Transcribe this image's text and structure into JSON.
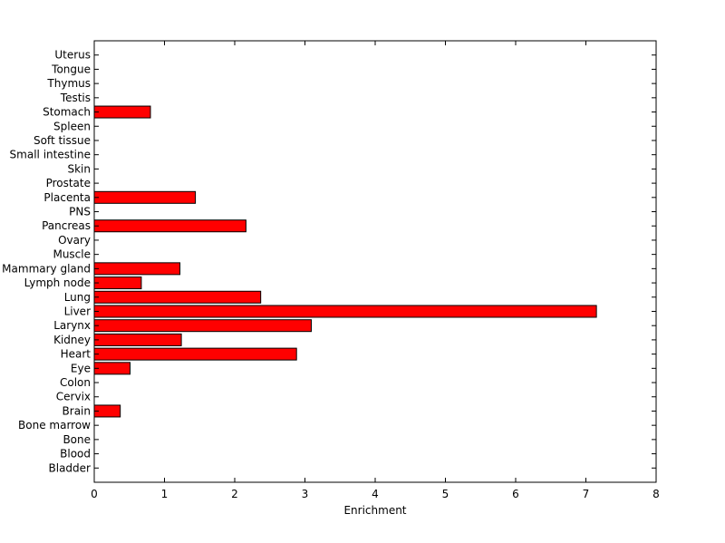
{
  "chart_data": {
    "type": "bar",
    "orientation": "horizontal",
    "categories": [
      "Bladder",
      "Blood",
      "Bone",
      "Bone marrow",
      "Brain",
      "Cervix",
      "Colon",
      "Eye",
      "Heart",
      "Kidney",
      "Larynx",
      "Liver",
      "Lung",
      "Lymph node",
      "Mammary gland",
      "Muscle",
      "Ovary",
      "Pancreas",
      "PNS",
      "Placenta",
      "Prostate",
      "Skin",
      "Small intestine",
      "Soft tissue",
      "Spleen",
      "Stomach",
      "Testis",
      "Thymus",
      "Tongue",
      "Uterus"
    ],
    "values": [
      0,
      0,
      0,
      0,
      0.37,
      0,
      0,
      0.51,
      2.88,
      1.24,
      3.09,
      7.15,
      2.37,
      0.67,
      1.22,
      0,
      0,
      2.16,
      0,
      1.44,
      0,
      0,
      0,
      0,
      0,
      0.8,
      0,
      0,
      0,
      0
    ],
    "xlabel": "Enrichment",
    "ylabel": "",
    "xlim": [
      0,
      8
    ],
    "xticks": [
      0,
      1,
      2,
      3,
      4,
      5,
      6,
      7,
      8
    ],
    "bar_color": "#ff0000",
    "grid": false
  }
}
